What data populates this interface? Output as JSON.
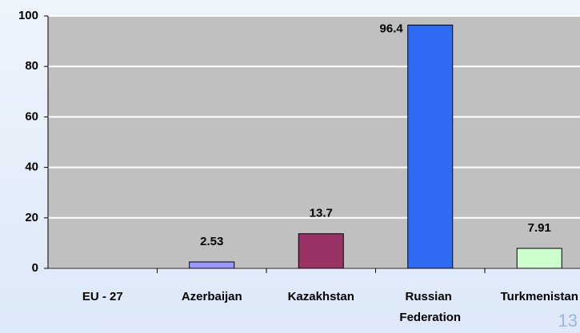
{
  "chart_data": {
    "type": "bar",
    "categories": [
      "EU - 27",
      "Azerbaijan",
      "Kazakhstan",
      "Russian Federation",
      "Turkmenistan"
    ],
    "values": [
      null,
      2.53,
      13.7,
      96.4,
      7.91
    ],
    "colors": [
      "#9999ff",
      "#9999ff",
      "#993366",
      "#2f6bf5",
      "#ccffcc"
    ],
    "ylim": [
      0,
      100
    ],
    "yticks": [
      0,
      20,
      40,
      60,
      80,
      100
    ],
    "grid": true,
    "page_number": "13"
  }
}
